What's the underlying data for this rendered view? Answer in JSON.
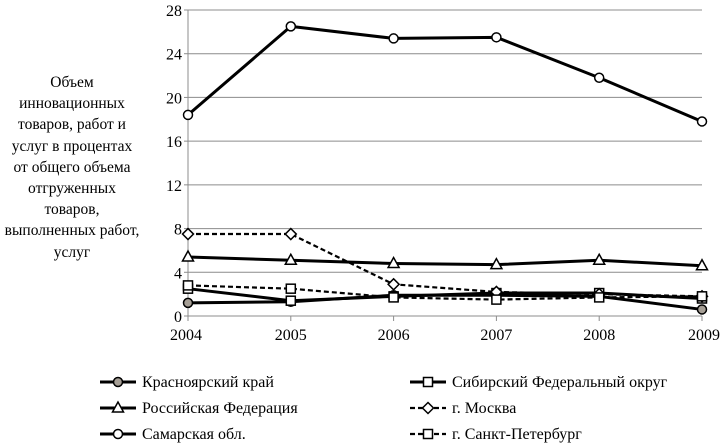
{
  "chart_data": {
    "type": "line",
    "title": "",
    "xlabel": "",
    "ylabel": "Объем инновационных товаров, работ и услуг в процентах от общего объема отгруженных товаров, выполненных работ, услуг",
    "x": [
      2004,
      2005,
      2006,
      2007,
      2008,
      2009
    ],
    "x_tick_labels": [
      "2004",
      "2005",
      "2006",
      "2007",
      "2008",
      "2009"
    ],
    "y_tick_labels": [
      "0",
      "4",
      "8",
      "12",
      "16",
      "20",
      "24",
      "28"
    ],
    "ylim": [
      0,
      28
    ],
    "y_ticks": [
      0,
      4,
      8,
      12,
      16,
      20,
      24,
      28
    ],
    "grid": "horizontal",
    "legend_position": "bottom",
    "series": [
      {
        "name": "Красноярский край",
        "values": [
          1.2,
          1.3,
          1.9,
          1.9,
          1.8,
          0.6
        ],
        "marker": "circle",
        "marker_fill": "#a69f96",
        "dash": "solid"
      },
      {
        "name": "Сибирский Федеральный округ",
        "values": [
          2.5,
          1.4,
          1.8,
          2.1,
          2.1,
          1.6
        ],
        "marker": "square",
        "marker_fill": "#ffffff",
        "dash": "solid"
      },
      {
        "name": "Российская Федерация",
        "values": [
          5.4,
          5.1,
          4.8,
          4.7,
          5.1,
          4.6
        ],
        "marker": "triangle",
        "marker_fill": "#ffffff",
        "dash": "solid"
      },
      {
        "name": "г. Москва",
        "values": [
          7.5,
          7.5,
          2.9,
          2.2,
          2.0,
          1.8
        ],
        "marker": "diamond",
        "marker_fill": "#ffffff",
        "dash": "dashed"
      },
      {
        "name": "Самарская обл.",
        "values": [
          18.4,
          26.5,
          25.4,
          25.5,
          21.8,
          17.8
        ],
        "marker": "circle",
        "marker_fill": "#ffffff",
        "dash": "solid"
      },
      {
        "name": "г. Санкт-Петербург",
        "values": [
          2.8,
          2.5,
          1.7,
          1.5,
          1.7,
          1.8
        ],
        "marker": "square",
        "marker_fill": "#ffffff",
        "dash": "dashed"
      }
    ]
  }
}
